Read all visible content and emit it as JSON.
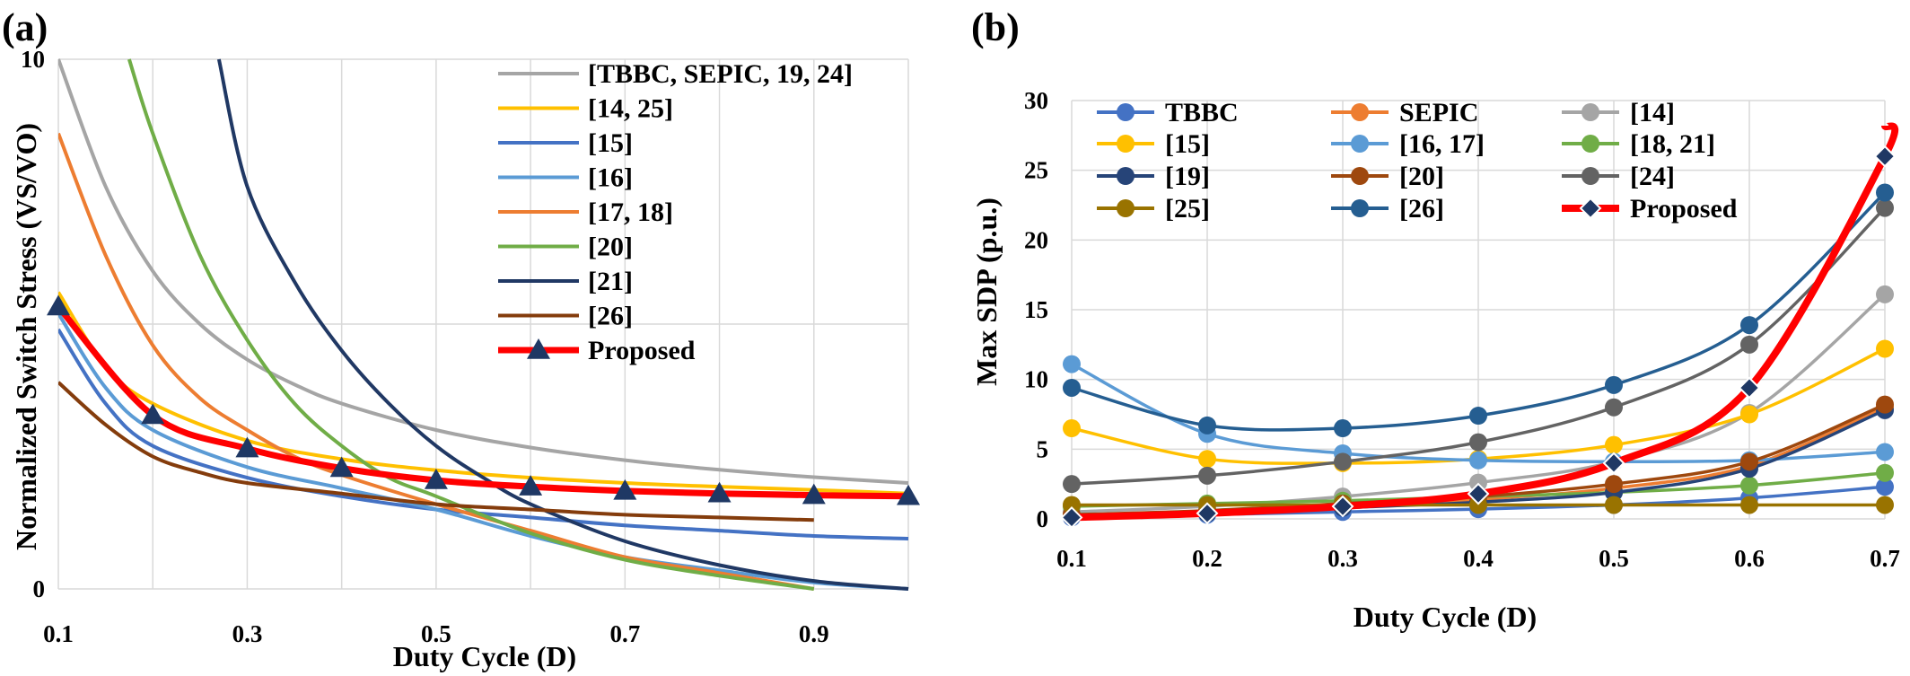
{
  "panels": {
    "a": {
      "label": "(a)"
    },
    "b": {
      "label": "(b)"
    }
  },
  "chart_data": [
    {
      "type": "line",
      "panel": "(a)",
      "xlabel": "Duty Cycle (D)",
      "ylabel": "Normalized Switch Stress (VS/VO)",
      "xlim": [
        0.1,
        1.0
      ],
      "ylim": [
        0,
        10
      ],
      "x_ticks": [
        "0.1",
        "0.3",
        "0.5",
        "0.7",
        "0.9"
      ],
      "y_ticks": [
        "0",
        "10"
      ],
      "grid": true,
      "legend_position": "top-right",
      "series": [
        {
          "name": "[TBBC, SEPIC, 19, 24]",
          "color": "#a5a5a5",
          "x": [
            0.1,
            0.15,
            0.2,
            0.25,
            0.3,
            0.35,
            0.4,
            0.5,
            0.6,
            0.7,
            0.8,
            0.9,
            1.0
          ],
          "y": [
            10.0,
            7.6,
            6.0,
            5.0,
            4.33,
            3.86,
            3.5,
            3.0,
            2.67,
            2.43,
            2.25,
            2.11,
            2.0
          ]
        },
        {
          "name": "[14, 25]",
          "color": "#ffc000",
          "x": [
            0.1,
            0.15,
            0.2,
            0.3,
            0.4,
            0.5,
            0.6,
            0.7,
            0.8,
            0.9,
            1.0
          ],
          "y": [
            5.6,
            4.2,
            3.5,
            2.8,
            2.45,
            2.24,
            2.1,
            2.0,
            1.93,
            1.87,
            1.8
          ]
        },
        {
          "name": "[15]",
          "color": "#4472c4",
          "x": [
            0.1,
            0.15,
            0.2,
            0.3,
            0.4,
            0.5,
            0.6,
            0.7,
            0.8,
            0.9,
            1.0
          ],
          "y": [
            4.9,
            3.5,
            2.7,
            2.1,
            1.75,
            1.5,
            1.35,
            1.2,
            1.1,
            1.0,
            0.95
          ]
        },
        {
          "name": "[16]",
          "color": "#5b9bd5",
          "x": [
            0.1,
            0.15,
            0.2,
            0.3,
            0.4,
            0.5,
            0.6,
            0.7,
            0.8,
            0.9,
            1.0
          ],
          "y": [
            5.2,
            3.8,
            3.0,
            2.3,
            1.9,
            1.5,
            1.0,
            0.6,
            0.35,
            0.12,
            0.0
          ]
        },
        {
          "name": "[17, 18]",
          "color": "#ed7d31",
          "x": [
            0.1,
            0.15,
            0.2,
            0.25,
            0.3,
            0.35,
            0.4,
            0.5,
            0.6,
            0.7,
            0.8,
            0.9
          ],
          "y": [
            8.6,
            6.3,
            4.6,
            3.6,
            3.0,
            2.5,
            2.15,
            1.6,
            1.1,
            0.6,
            0.3,
            0.0
          ]
        },
        {
          "name": "[20]",
          "color": "#70ad47",
          "x": [
            0.175,
            0.2,
            0.25,
            0.3,
            0.35,
            0.4,
            0.45,
            0.5,
            0.6,
            0.7,
            0.8,
            0.9
          ],
          "y": [
            10.0,
            8.6,
            6.3,
            4.7,
            3.5,
            2.7,
            2.1,
            1.75,
            1.05,
            0.55,
            0.25,
            0.0
          ]
        },
        {
          "name": "[21]",
          "color": "#203864",
          "x": [
            0.27,
            0.3,
            0.35,
            0.4,
            0.45,
            0.5,
            0.55,
            0.6,
            0.7,
            0.8,
            0.9,
            1.0
          ],
          "y": [
            10.0,
            7.6,
            5.8,
            4.5,
            3.5,
            2.7,
            2.1,
            1.6,
            0.9,
            0.45,
            0.15,
            0.0
          ]
        },
        {
          "name": "[26]",
          "color": "#843c0c",
          "x": [
            0.1,
            0.15,
            0.2,
            0.25,
            0.3,
            0.4,
            0.5,
            0.6,
            0.7,
            0.8,
            0.9
          ],
          "y": [
            3.9,
            3.1,
            2.5,
            2.2,
            2.0,
            1.8,
            1.6,
            1.5,
            1.4,
            1.35,
            1.3
          ]
        },
        {
          "name": "Proposed",
          "color": "#ff0000",
          "marker": "triangle",
          "x": [
            0.1,
            0.2,
            0.3,
            0.4,
            0.5,
            0.6,
            0.7,
            0.8,
            0.9,
            1.0
          ],
          "y": [
            5.33,
            3.28,
            2.65,
            2.28,
            2.05,
            1.93,
            1.85,
            1.8,
            1.77,
            1.75
          ]
        }
      ]
    },
    {
      "type": "line",
      "panel": "(b)",
      "xlabel": "Duty Cycle (D)",
      "ylabel": "Max SDP (p.u.)",
      "x": [
        0.1,
        0.2,
        0.3,
        0.4,
        0.5,
        0.6,
        0.7
      ],
      "x_ticks": [
        "0.1",
        "0.2",
        "0.3",
        "0.4",
        "0.5",
        "0.6",
        "0.7"
      ],
      "y_ticks": [
        "0",
        "5",
        "10",
        "15",
        "20",
        "25",
        "30"
      ],
      "ylim": [
        0,
        30
      ],
      "grid": true,
      "legend_position": "top",
      "series": [
        {
          "name": "TBBC",
          "color": "#4472c4",
          "values": [
            0.1,
            0.3,
            0.5,
            0.7,
            1.0,
            1.5,
            2.3
          ]
        },
        {
          "name": "SEPIC",
          "color": "#ed7d31",
          "values": [
            0.2,
            0.5,
            0.9,
            1.4,
            2.2,
            3.8,
            8.0
          ]
        },
        {
          "name": "[14]",
          "color": "#a5a5a5",
          "values": [
            0.5,
            0.9,
            1.6,
            2.6,
            4.1,
            7.6,
            16.1
          ]
        },
        {
          "name": "[15]",
          "color": "#ffc000",
          "values": [
            6.5,
            4.3,
            4.0,
            4.3,
            5.3,
            7.5,
            12.2
          ]
        },
        {
          "name": "[16, 17]",
          "color": "#5b9bd5",
          "values": [
            11.1,
            6.1,
            4.7,
            4.2,
            4.1,
            4.2,
            4.8
          ]
        },
        {
          "name": "[18, 21]",
          "color": "#70ad47",
          "values": [
            0.9,
            1.1,
            1.3,
            1.6,
            1.9,
            2.4,
            3.3
          ]
        },
        {
          "name": "[19]",
          "color": "#264478",
          "values": [
            0.2,
            0.4,
            0.8,
            1.2,
            1.9,
            3.6,
            7.8
          ]
        },
        {
          "name": "[20]",
          "color": "#9e480e",
          "values": [
            0.3,
            0.6,
            1.1,
            1.6,
            2.5,
            4.1,
            8.2
          ]
        },
        {
          "name": "[24]",
          "color": "#636363",
          "values": [
            2.5,
            3.1,
            4.1,
            5.5,
            8.0,
            12.5,
            22.3
          ]
        },
        {
          "name": "[25]",
          "color": "#997300",
          "values": [
            1.0,
            1.0,
            1.0,
            1.0,
            1.0,
            1.0,
            1.0
          ]
        },
        {
          "name": "[26]",
          "color": "#255e91",
          "values": [
            9.4,
            6.7,
            6.5,
            7.4,
            9.6,
            13.9,
            23.4
          ]
        },
        {
          "name": "Proposed",
          "color": "#ff0000",
          "marker": "diamond",
          "values": [
            0.1,
            0.4,
            0.9,
            1.8,
            4.0,
            9.4,
            26.0
          ]
        }
      ]
    }
  ]
}
